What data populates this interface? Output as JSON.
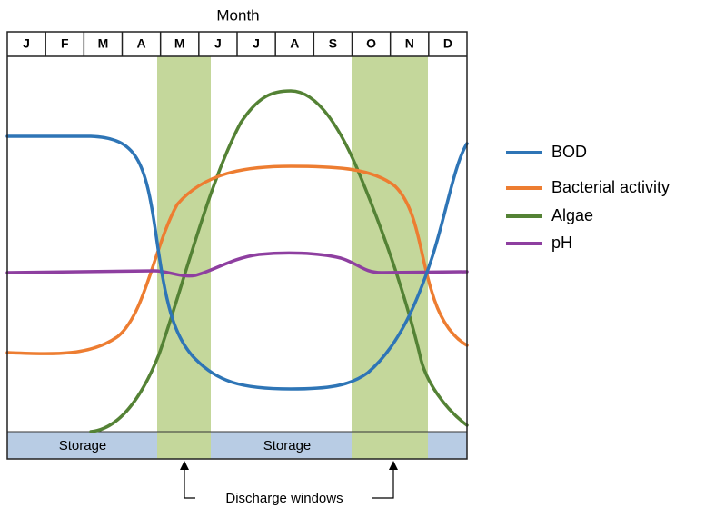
{
  "header": {
    "title": "Month",
    "months": [
      "J",
      "F",
      "M",
      "A",
      "M",
      "J",
      "J",
      "A",
      "S",
      "O",
      "N",
      "D"
    ]
  },
  "legend": [
    "BOD",
    "Bacterial activity",
    "Algae",
    "pH"
  ],
  "bands": {
    "storage": [
      "Storage",
      "Storage"
    ],
    "annotation": "Discharge windows"
  }
}
